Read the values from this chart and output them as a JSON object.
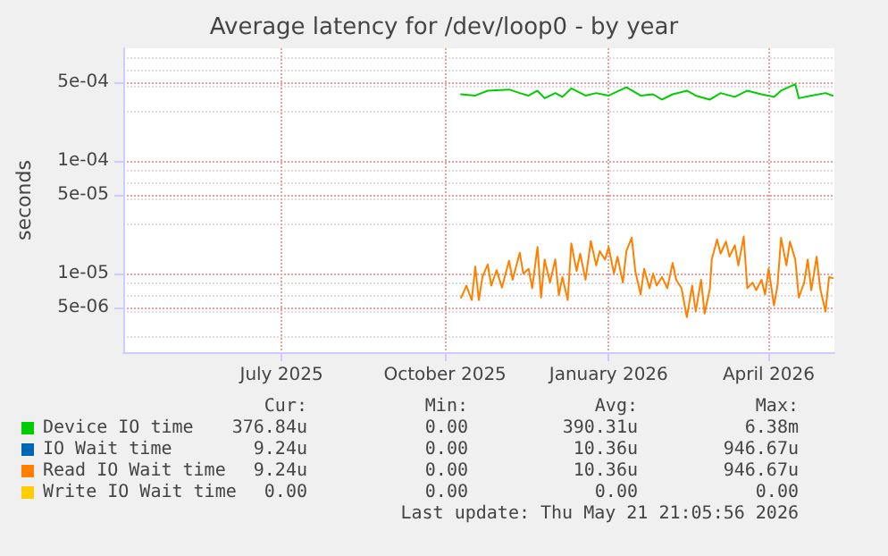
{
  "chart_data": {
    "type": "line",
    "title": "Average latency for /dev/loop0 - by year",
    "ylabel": "seconds",
    "log": "y",
    "grid": true,
    "legend": "bottom",
    "marker": "none",
    "line_style": "solid",
    "xlim": [
      "2025-04-17",
      "2026-05-22"
    ],
    "xticks": [
      {
        "value": "2025-07-15",
        "label": "July 2025"
      },
      {
        "value": "2025-10-15",
        "label": "October 2025"
      },
      {
        "value": "2026-01-15",
        "label": "January 2026"
      },
      {
        "value": "2026-04-15",
        "label": "April 2026"
      }
    ],
    "ylim": [
      2e-06,
      0.001
    ],
    "yticks": [
      {
        "value": 5e-06,
        "label": "5e-06"
      },
      {
        "value": 1e-05,
        "label": "1e-05"
      },
      {
        "value": 5e-05,
        "label": "5e-05"
      },
      {
        "value": 0.0001,
        "label": "1e-04"
      },
      {
        "value": 0.0005,
        "label": "5e-04"
      }
    ],
    "x": [
      "2025-10-24",
      "2025-10-27",
      "2025-10-30",
      "2025-11-01",
      "2025-11-03",
      "2025-11-05",
      "2025-11-08",
      "2025-11-10",
      "2025-11-13",
      "2025-11-16",
      "2025-11-20",
      "2025-11-22",
      "2025-11-26",
      "2025-11-28",
      "2025-12-01",
      "2025-12-03",
      "2025-12-06",
      "2025-12-08",
      "2025-12-10",
      "2025-12-13",
      "2025-12-16",
      "2025-12-18",
      "2025-12-20",
      "2025-12-23",
      "2025-12-25",
      "2025-12-28",
      "2025-12-30",
      "2026-01-02",
      "2026-01-05",
      "2026-01-08",
      "2026-01-10",
      "2026-01-13",
      "2026-01-15",
      "2026-01-18",
      "2026-01-20",
      "2026-01-23",
      "2026-01-25",
      "2026-01-28",
      "2026-01-30",
      "2026-02-02",
      "2026-02-04",
      "2026-02-07",
      "2026-02-09",
      "2026-02-11",
      "2026-02-14",
      "2026-02-17",
      "2026-02-20",
      "2026-02-22",
      "2026-02-25",
      "2026-02-28",
      "2026-03-03",
      "2026-03-05",
      "2026-03-08",
      "2026-03-10",
      "2026-03-13",
      "2026-03-14",
      "2026-03-17",
      "2026-03-19",
      "2026-03-22",
      "2026-03-24",
      "2026-03-27",
      "2026-03-29",
      "2026-04-01",
      "2026-04-03",
      "2026-04-06",
      "2026-04-08",
      "2026-04-11",
      "2026-04-13",
      "2026-04-15",
      "2026-04-18",
      "2026-04-20",
      "2026-04-22",
      "2026-04-25",
      "2026-04-27",
      "2026-04-30",
      "2026-05-02",
      "2026-05-05",
      "2026-05-07",
      "2026-05-09",
      "2026-05-12",
      "2026-05-14",
      "2026-05-17",
      "2026-05-19",
      "2026-05-21"
    ],
    "series": [
      {
        "name": "Device IO time",
        "color": "#00cc00",
        "x": [
          "2025-10-24",
          "2025-11-01",
          "2025-11-08",
          "2025-11-20",
          "2025-11-26",
          "2025-12-01",
          "2025-12-06",
          "2025-12-10",
          "2025-12-16",
          "2025-12-20",
          "2025-12-25",
          "2026-01-02",
          "2026-01-08",
          "2026-01-15",
          "2026-01-25",
          "2026-02-02",
          "2026-02-09",
          "2026-02-14",
          "2026-02-20",
          "2026-02-28",
          "2026-03-05",
          "2026-03-13",
          "2026-03-19",
          "2026-03-27",
          "2026-04-03",
          "2026-04-11",
          "2026-04-18",
          "2026-04-22",
          "2026-04-30",
          "2026-05-02",
          "2026-05-09",
          "2026-05-17",
          "2026-05-21"
        ],
        "values": [
          0.00039,
          0.00038,
          0.00042,
          0.00043,
          0.0004,
          0.00038,
          0.00042,
          0.00036,
          0.0004,
          0.00037,
          0.00044,
          0.00038,
          0.0004,
          0.00038,
          0.00045,
          0.00038,
          0.00039,
          0.00035,
          0.00039,
          0.00042,
          0.00038,
          0.00035,
          0.0004,
          0.00037,
          0.00042,
          0.00039,
          0.00037,
          0.00042,
          0.00048,
          0.00036,
          0.00038,
          0.0004,
          0.00038
        ]
      },
      {
        "name": "IO Wait time",
        "color": "#0066b3",
        "values": [
          null,
          null,
          null,
          null,
          null,
          null,
          null,
          null,
          null,
          null,
          null,
          null,
          null,
          null,
          null,
          null,
          null,
          null,
          null,
          null,
          null,
          null,
          null,
          null,
          null,
          null,
          null,
          null,
          null,
          null,
          null,
          null,
          null,
          null,
          null,
          null,
          null,
          null,
          null,
          null,
          null,
          null,
          null,
          null,
          null,
          null,
          null,
          null,
          null,
          null,
          null,
          null,
          null,
          null,
          null,
          null,
          null,
          null,
          null,
          null,
          null,
          null,
          null,
          null,
          null,
          null,
          null,
          null,
          null,
          null,
          null,
          null,
          null,
          null,
          null,
          null,
          null,
          null,
          null,
          null,
          null,
          null,
          null,
          null
        ]
      },
      {
        "name": "Read IO Wait time",
        "color": "#ff8000",
        "values": [
          6.1e-06,
          7.8e-06,
          5.8e-06,
          1.15e-05,
          5.8e-06,
          9.3e-06,
          1.2e-05,
          7.8e-06,
          1.07e-05,
          7.5e-06,
          1.3e-05,
          8.8e-06,
          1.53e-05,
          1e-05,
          1.1e-05,
          7.4e-06,
          1.72e-05,
          6.1e-06,
          1.33e-05,
          8.3e-06,
          1.33e-05,
          6.4e-06,
          9.3e-06,
          5.8e-06,
          1.85e-05,
          1.05e-05,
          1.5e-05,
          8.8e-06,
          1.94e-05,
          1.18e-05,
          1.58e-05,
          1.33e-05,
          1.72e-05,
          1e-05,
          1.41e-05,
          8.3e-06,
          1.58e-05,
          2.08e-05,
          1.05e-05,
          6.5e-06,
          1.1e-05,
          7.4e-06,
          1e-05,
          7.8e-06,
          9.3e-06,
          7.4e-06,
          1.24e-05,
          8.8e-06,
          7.4e-06,
          4.1e-06,
          7.8e-06,
          4.6e-06,
          8.8e-06,
          4.4e-06,
          7.4e-06,
          1.33e-05,
          2e-05,
          1.5e-05,
          1.92e-05,
          1.41e-05,
          1.78e-05,
          1.18e-05,
          2.13e-05,
          7.4e-06,
          8.3e-06,
          7.1e-06,
          8.8e-06,
          6.5e-06,
          1.1e-05,
          5.2e-06,
          7.8e-06,
          2.08e-05,
          1.18e-05,
          1.92e-05,
          1.33e-05,
          6.1e-06,
          8.3e-06,
          1.33e-05,
          7.1e-06,
          1.41e-05,
          7.4e-06,
          4.6e-06,
          9.3e-06,
          9.1e-06
        ]
      },
      {
        "name": "Write IO Wait time",
        "color": "#ffcc00",
        "values": [
          null,
          null,
          null,
          null,
          null,
          null,
          null,
          null,
          null,
          null,
          null,
          null,
          null,
          null,
          null,
          null,
          null,
          null,
          null,
          null,
          null,
          null,
          null,
          null,
          null,
          null,
          null,
          null,
          null,
          null,
          null,
          null,
          null,
          null,
          null,
          null,
          null,
          null,
          null,
          null,
          null,
          null,
          null,
          null,
          null,
          null,
          null,
          null,
          null,
          null,
          null,
          null,
          null,
          null,
          null,
          null,
          null,
          null,
          null,
          null,
          null,
          null,
          null,
          null,
          null,
          null,
          null,
          null,
          null,
          null,
          null,
          null,
          null,
          null,
          null,
          null,
          null,
          null,
          null,
          null,
          null,
          null,
          null,
          null
        ]
      }
    ],
    "annotations": [
      "Cur:",
      "Min:",
      "Avg:",
      "Max:",
      "376.84u",
      "0.00",
      "390.31u",
      "6.38m",
      "9.24u",
      "0.00",
      "10.36u",
      "946.67u",
      "9.24u",
      "0.00",
      "10.36u",
      "946.67u",
      "0.00",
      "0.00",
      "0.00",
      "0.00",
      "Last update: Thu May 21 21:05:56 2026"
    ]
  }
}
